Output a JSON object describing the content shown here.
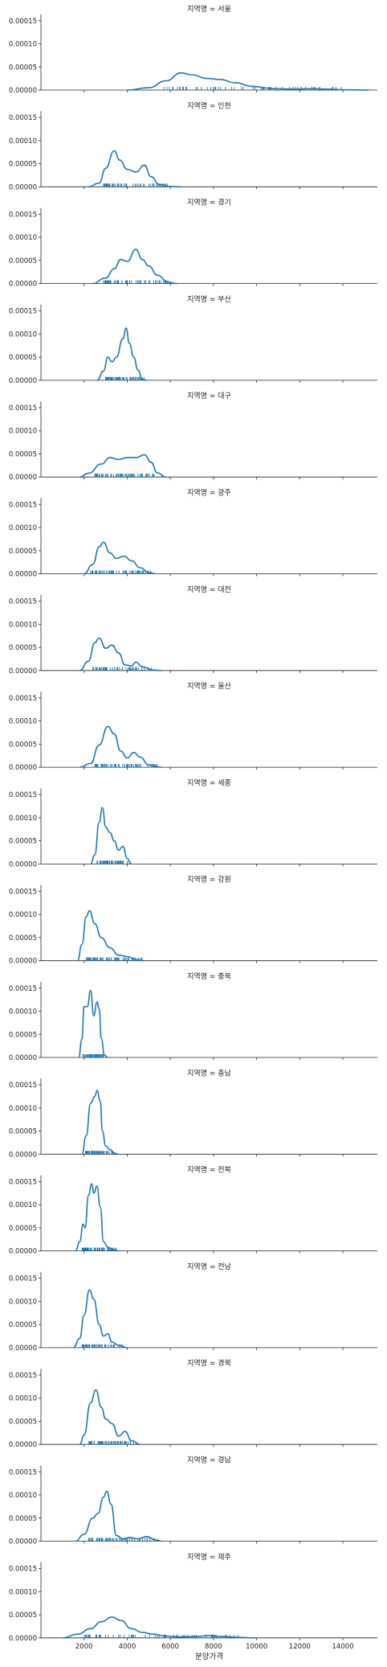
{
  "chart_data": {
    "type": "kde-facet",
    "facet_label_prefix": "지역명 = ",
    "xlabel": "분양가격",
    "xlim": [
      0,
      15600
    ],
    "ylim": [
      0,
      0.00016
    ],
    "x_ticks": [
      2000,
      4000,
      6000,
      8000,
      10000,
      12000,
      14000
    ],
    "y_ticks": [
      "0.00000",
      "0.00005",
      "0.00010",
      "0.00015"
    ],
    "line_color": "#1f77b4",
    "rug": true,
    "grid": false,
    "facets": [
      {
        "region": "서울",
        "curve": [
          [
            4000,
            0
          ],
          [
            5000,
            5e-06
          ],
          [
            5800,
            2e-05
          ],
          [
            6500,
            3.7e-05
          ],
          [
            7000,
            3.3e-05
          ],
          [
            7700,
            2.5e-05
          ],
          [
            8300,
            2.3e-05
          ],
          [
            9000,
            1.6e-05
          ],
          [
            9800,
            8e-06
          ],
          [
            10800,
            3e-06
          ],
          [
            11800,
            2e-06
          ],
          [
            12500,
            3e-06
          ],
          [
            13200,
            2e-06
          ],
          [
            14200,
            5e-07
          ],
          [
            15200,
            0
          ]
        ],
        "rug_range": [
          5700,
          14200
        ]
      },
      {
        "region": "인천",
        "curve": [
          [
            2200,
            0
          ],
          [
            2700,
            8e-06
          ],
          [
            3000,
            4e-05
          ],
          [
            3400,
            7.8e-05
          ],
          [
            3650,
            5.8e-05
          ],
          [
            4000,
            3.8e-05
          ],
          [
            4400,
            3.2e-05
          ],
          [
            4800,
            4.7e-05
          ],
          [
            5100,
            2.2e-05
          ],
          [
            5500,
            5e-06
          ],
          [
            6000,
            5e-07
          ],
          [
            6500,
            0
          ]
        ],
        "rug_range": [
          2900,
          5900
        ]
      },
      {
        "region": "경기",
        "curve": [
          [
            2400,
            0
          ],
          [
            3000,
            1.2e-05
          ],
          [
            3400,
            3.2e-05
          ],
          [
            3700,
            5.2e-05
          ],
          [
            4000,
            4.8e-05
          ],
          [
            4400,
            7.4e-05
          ],
          [
            4700,
            5.2e-05
          ],
          [
            5000,
            3.8e-05
          ],
          [
            5400,
            1.8e-05
          ],
          [
            5900,
            3e-06
          ],
          [
            6300,
            0
          ]
        ],
        "rug_range": [
          2900,
          5900
        ]
      },
      {
        "region": "부산",
        "curve": [
          [
            2600,
            0
          ],
          [
            2900,
            2e-05
          ],
          [
            3100,
            5e-05
          ],
          [
            3300,
            4e-05
          ],
          [
            3500,
            5e-05
          ],
          [
            3800,
            9e-05
          ],
          [
            3950,
            0.000113
          ],
          [
            4100,
            8e-05
          ],
          [
            4300,
            5e-05
          ],
          [
            4500,
            2.2e-05
          ],
          [
            4700,
            2e-06
          ],
          [
            4900,
            0
          ]
        ],
        "rug_range": [
          3000,
          4800
        ]
      },
      {
        "region": "대구",
        "curve": [
          [
            1800,
            0
          ],
          [
            2200,
            8e-06
          ],
          [
            2800,
            2.8e-05
          ],
          [
            3200,
            4.2e-05
          ],
          [
            3600,
            3.8e-05
          ],
          [
            4000,
            4.2e-05
          ],
          [
            4400,
            4.2e-05
          ],
          [
            4800,
            4.8e-05
          ],
          [
            5100,
            3.2e-05
          ],
          [
            5400,
            9e-06
          ],
          [
            5800,
            0
          ]
        ],
        "rug_range": [
          2500,
          5600
        ]
      },
      {
        "region": "광주",
        "curve": [
          [
            2000,
            0
          ],
          [
            2400,
            2e-05
          ],
          [
            2700,
            5.8e-05
          ],
          [
            2900,
            6.8e-05
          ],
          [
            3200,
            4.5e-05
          ],
          [
            3500,
            3.3e-05
          ],
          [
            3850,
            3.8e-05
          ],
          [
            4200,
            2.8e-05
          ],
          [
            4600,
            1.3e-05
          ],
          [
            5000,
            3e-06
          ],
          [
            5300,
            0
          ]
        ],
        "rug_range": [
          2300,
          5200
        ]
      },
      {
        "region": "대전",
        "curve": [
          [
            1800,
            0
          ],
          [
            2200,
            2e-05
          ],
          [
            2500,
            6e-05
          ],
          [
            2700,
            7e-05
          ],
          [
            3000,
            4.8e-05
          ],
          [
            3300,
            5.5e-05
          ],
          [
            3600,
            3.8e-05
          ],
          [
            3900,
            1.2e-05
          ],
          [
            4200,
            1e-05
          ],
          [
            4400,
            1.8e-05
          ],
          [
            4700,
            8e-06
          ],
          [
            5200,
            1e-06
          ],
          [
            5600,
            0
          ]
        ],
        "rug_range": [
          2400,
          5200
        ]
      },
      {
        "region": "울산",
        "curve": [
          [
            1800,
            0
          ],
          [
            2300,
            8e-06
          ],
          [
            2700,
            4.8e-05
          ],
          [
            3100,
            8.8e-05
          ],
          [
            3400,
            7.2e-05
          ],
          [
            3700,
            3.5e-05
          ],
          [
            4000,
            2e-05
          ],
          [
            4300,
            3.2e-05
          ],
          [
            4600,
            2.2e-05
          ],
          [
            5000,
            5e-06
          ],
          [
            5600,
            0
          ]
        ],
        "rug_range": [
          2500,
          5400
        ]
      },
      {
        "region": "세종",
        "curve": [
          [
            2300,
            0
          ],
          [
            2500,
            2e-05
          ],
          [
            2700,
            9e-05
          ],
          [
            2850,
            0.000122
          ],
          [
            3000,
            8e-05
          ],
          [
            3200,
            6.8e-05
          ],
          [
            3400,
            5e-05
          ],
          [
            3600,
            3e-05
          ],
          [
            3800,
            3.8e-05
          ],
          [
            4000,
            1.2e-05
          ],
          [
            4200,
            0
          ]
        ],
        "rug_range": [
          2600,
          4100
        ]
      },
      {
        "region": "강원",
        "curve": [
          [
            1700,
            0
          ],
          [
            1900,
            3.5e-05
          ],
          [
            2100,
            9.5e-05
          ],
          [
            2250,
            0.000108
          ],
          [
            2500,
            8e-05
          ],
          [
            2800,
            5e-05
          ],
          [
            3200,
            2.8e-05
          ],
          [
            3600,
            1.2e-05
          ],
          [
            4000,
            9e-06
          ],
          [
            4400,
            3e-06
          ],
          [
            4800,
            0
          ]
        ],
        "rug_range": [
          2100,
          4700
        ]
      },
      {
        "region": "충북",
        "curve": [
          [
            1750,
            0
          ],
          [
            1900,
            4e-05
          ],
          [
            2000,
            0.00011
          ],
          [
            2150,
            0.00011
          ],
          [
            2300,
            0.000145
          ],
          [
            2450,
            9e-05
          ],
          [
            2600,
            0.00012
          ],
          [
            2700,
            0.000105
          ],
          [
            2800,
            4e-05
          ],
          [
            2950,
            5e-06
          ],
          [
            3100,
            0
          ]
        ],
        "rug_range": [
          1950,
          2900
        ]
      },
      {
        "region": "충남",
        "curve": [
          [
            1900,
            0
          ],
          [
            2100,
            4e-05
          ],
          [
            2300,
            0.00011
          ],
          [
            2500,
            0.000125
          ],
          [
            2600,
            0.000138
          ],
          [
            2750,
            0.000115
          ],
          [
            2850,
            5e-05
          ],
          [
            3000,
            1.8e-05
          ],
          [
            3200,
            1e-05
          ],
          [
            3400,
            2e-06
          ],
          [
            3600,
            0
          ]
        ],
        "rug_range": [
          2050,
          3400
        ]
      },
      {
        "region": "전북",
        "curve": [
          [
            1600,
            0
          ],
          [
            1800,
            2e-05
          ],
          [
            1950,
            5.8e-05
          ],
          [
            2050,
            5e-05
          ],
          [
            2200,
            0.00012
          ],
          [
            2350,
            0.000145
          ],
          [
            2450,
            0.000125
          ],
          [
            2600,
            0.00014
          ],
          [
            2750,
            9.5e-05
          ],
          [
            2900,
            2e-05
          ],
          [
            3100,
            8e-06
          ],
          [
            3400,
            2e-06
          ],
          [
            3600,
            0
          ]
        ],
        "rug_range": [
          1900,
          3500
        ]
      },
      {
        "region": "전남",
        "curve": [
          [
            1500,
            0
          ],
          [
            1800,
            2e-05
          ],
          [
            2000,
            7e-05
          ],
          [
            2250,
            0.000125
          ],
          [
            2450,
            0.000105
          ],
          [
            2700,
            5e-05
          ],
          [
            2900,
            2.5e-05
          ],
          [
            3100,
            3e-05
          ],
          [
            3300,
            1.2e-05
          ],
          [
            3600,
            5e-06
          ],
          [
            4000,
            0
          ]
        ],
        "rug_range": [
          1900,
          3800
        ]
      },
      {
        "region": "경북",
        "curve": [
          [
            1800,
            0
          ],
          [
            2000,
            2e-05
          ],
          [
            2300,
            9e-05
          ],
          [
            2550,
            0.000118
          ],
          [
            2800,
            8e-05
          ],
          [
            3000,
            5.5e-05
          ],
          [
            3300,
            4.5e-05
          ],
          [
            3600,
            1.8e-05
          ],
          [
            3900,
            2.8e-05
          ],
          [
            4200,
            8e-06
          ],
          [
            4600,
            0
          ]
        ],
        "rug_range": [
          2200,
          4300
        ]
      },
      {
        "region": "경남",
        "curve": [
          [
            1600,
            0
          ],
          [
            2000,
            1.5e-05
          ],
          [
            2400,
            5e-05
          ],
          [
            2650,
            6e-05
          ],
          [
            2900,
            9.5e-05
          ],
          [
            3050,
            0.000108
          ],
          [
            3250,
            8e-05
          ],
          [
            3500,
            1.2e-05
          ],
          [
            3800,
            5e-06
          ],
          [
            4100,
            8e-06
          ],
          [
            4500,
            5e-06
          ],
          [
            4900,
            1e-05
          ],
          [
            5300,
            3e-06
          ],
          [
            5600,
            0
          ]
        ],
        "rug_range": [
          2200,
          5300
        ]
      },
      {
        "region": "제주",
        "curve": [
          [
            1000,
            0
          ],
          [
            1700,
            8e-06
          ],
          [
            2300,
            2e-05
          ],
          [
            2800,
            3.5e-05
          ],
          [
            3300,
            4.5e-05
          ],
          [
            3700,
            3.8e-05
          ],
          [
            4200,
            2e-05
          ],
          [
            4700,
            1.2e-05
          ],
          [
            5200,
            8e-06
          ],
          [
            5800,
            4e-06
          ],
          [
            6400,
            2e-06
          ],
          [
            7200,
            3e-06
          ],
          [
            7800,
            5e-06
          ],
          [
            8400,
            3e-06
          ],
          [
            9200,
            1e-06
          ],
          [
            10000,
            0
          ]
        ],
        "rug_range": [
          2000,
          9200
        ]
      }
    ]
  }
}
